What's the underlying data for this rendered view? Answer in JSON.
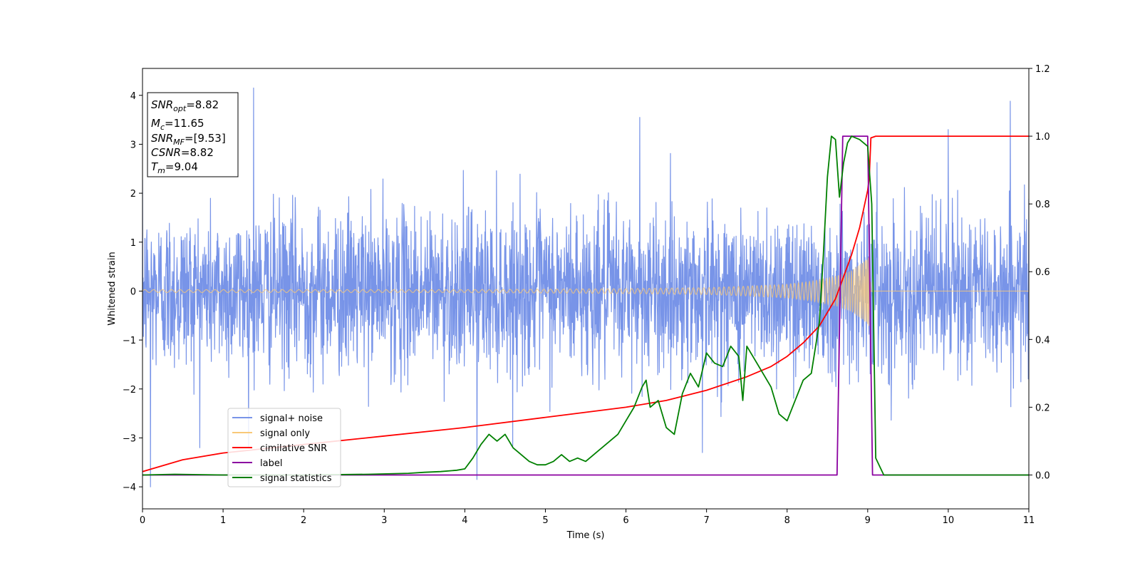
{
  "chart_data": {
    "type": "line",
    "xlabel": "Time (s)",
    "ylabel": "Whitened strain",
    "xlim": [
      0,
      11
    ],
    "ylim_left": [
      -4.45,
      4.55
    ],
    "ylim_right": [
      -0.1,
      1.2
    ],
    "x_ticks": [
      0,
      1,
      2,
      3,
      4,
      5,
      6,
      7,
      8,
      9,
      10,
      11
    ],
    "y_ticks_left": [
      -4,
      -3,
      -2,
      -1,
      0,
      1,
      2,
      3,
      4
    ],
    "y_ticks_right": [
      "0.0",
      "0.2",
      "0.4",
      "0.6",
      "0.8",
      "1.0",
      "1.2"
    ],
    "stats_box": [
      {
        "base": "SNR",
        "sub": "opt",
        "value": "=8.82"
      },
      {
        "base": "M",
        "sub": "c",
        "value": "=11.65"
      },
      {
        "base": "SNR",
        "sub": "MF",
        "value": "=[9.53]"
      },
      {
        "base": "CSNR",
        "sub": "",
        "value": "=8.82"
      },
      {
        "base": "T",
        "sub": "m",
        "value": "=9.04"
      }
    ],
    "legend": {
      "placement": "lower-left",
      "entries": [
        {
          "label": "signal+ noise",
          "color": "#7894e8"
        },
        {
          "label": "signal only",
          "color": "#f8c878"
        },
        {
          "label": "cimilative SNR",
          "color": "#ff0000"
        },
        {
          "label": "label",
          "color": "#8b00a0"
        },
        {
          "label": "signal statistics",
          "color": "#008000"
        }
      ]
    },
    "series": [
      {
        "name": "signal+ noise",
        "axis": "left",
        "kind": "noise band",
        "color": "#7894e8",
        "typical_amplitude": 1.5,
        "peak_spikes": [
          [
            0.1,
            -4.0
          ],
          [
            1.38,
            4.15
          ],
          [
            4.15,
            -3.85
          ],
          [
            6.17,
            3.55
          ],
          [
            10.77,
            3.88
          ],
          [
            10.0,
            3.3
          ],
          [
            6.95,
            -3.3
          ]
        ]
      },
      {
        "name": "signal only",
        "axis": "left",
        "kind": "chirp envelope",
        "color": "#f8c878",
        "t": [
          0,
          2,
          4,
          5,
          6,
          7,
          7.5,
          8,
          8.3,
          8.6,
          8.8,
          8.95,
          9.02,
          9.04,
          11
        ],
        "amplitude": [
          0.03,
          0.03,
          0.03,
          0.04,
          0.05,
          0.07,
          0.1,
          0.14,
          0.2,
          0.3,
          0.42,
          0.6,
          0.72,
          0,
          0
        ]
      },
      {
        "name": "cimilative SNR",
        "axis": "right",
        "color": "#ff0000",
        "x": [
          0,
          0.5,
          1,
          2,
          3,
          4,
          5,
          6,
          6.5,
          7,
          7.5,
          7.8,
          8,
          8.2,
          8.4,
          8.6,
          8.8,
          8.9,
          9.0,
          9.02,
          9.04,
          9.1,
          11
        ],
        "y": [
          0.01,
          0.045,
          0.065,
          0.09,
          0.115,
          0.14,
          0.17,
          0.2,
          0.22,
          0.25,
          0.29,
          0.32,
          0.35,
          0.39,
          0.44,
          0.52,
          0.65,
          0.73,
          0.84,
          0.88,
          0.995,
          1.0,
          1.0
        ]
      },
      {
        "name": "label",
        "axis": "right",
        "color": "#8b00a0",
        "x": [
          0,
          8.62,
          8.69,
          9.0,
          9.06,
          11
        ],
        "y": [
          0,
          0,
          1.0,
          1.0,
          0,
          0
        ]
      },
      {
        "name": "signal statistics",
        "axis": "right",
        "color": "#008000",
        "x": [
          0,
          0.4,
          1,
          2,
          2.8,
          3.3,
          3.5,
          3.7,
          3.9,
          4.0,
          4.1,
          4.2,
          4.3,
          4.4,
          4.5,
          4.6,
          4.7,
          4.8,
          4.9,
          5.0,
          5.1,
          5.2,
          5.3,
          5.4,
          5.5,
          5.6,
          5.7,
          5.8,
          5.9,
          6.0,
          6.1,
          6.2,
          6.25,
          6.3,
          6.4,
          6.5,
          6.6,
          6.7,
          6.8,
          6.9,
          7.0,
          7.1,
          7.2,
          7.3,
          7.4,
          7.45,
          7.5,
          7.6,
          7.7,
          7.8,
          7.9,
          8.0,
          8.1,
          8.2,
          8.3,
          8.4,
          8.45,
          8.5,
          8.55,
          8.6,
          8.65,
          8.7,
          8.75,
          8.8,
          8.9,
          9.0,
          9.05,
          9.1,
          9.2,
          11
        ],
        "y": [
          0,
          0.002,
          0,
          0,
          0.002,
          0.005,
          0.008,
          0.01,
          0.014,
          0.018,
          0.05,
          0.09,
          0.12,
          0.1,
          0.12,
          0.08,
          0.06,
          0.04,
          0.03,
          0.03,
          0.04,
          0.06,
          0.04,
          0.05,
          0.04,
          0.06,
          0.08,
          0.1,
          0.12,
          0.16,
          0.2,
          0.26,
          0.28,
          0.2,
          0.22,
          0.14,
          0.12,
          0.24,
          0.3,
          0.26,
          0.36,
          0.33,
          0.32,
          0.38,
          0.35,
          0.22,
          0.38,
          0.34,
          0.3,
          0.26,
          0.18,
          0.16,
          0.22,
          0.28,
          0.3,
          0.45,
          0.65,
          0.88,
          1.0,
          0.99,
          0.82,
          0.92,
          0.98,
          1.0,
          0.99,
          0.97,
          0.8,
          0.05,
          0.0,
          0.0
        ]
      }
    ]
  }
}
